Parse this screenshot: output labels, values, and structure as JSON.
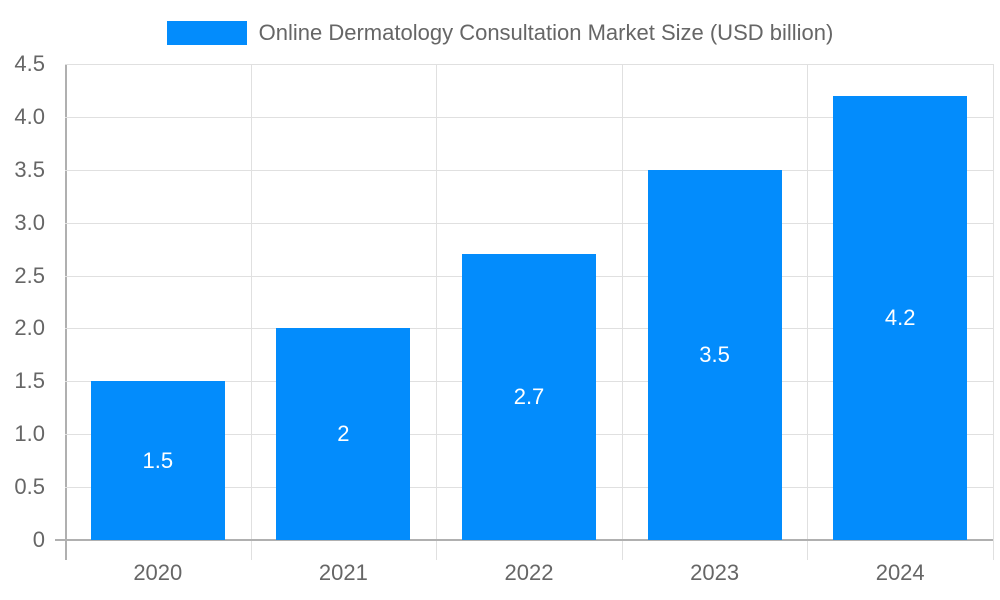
{
  "chart_data": {
    "type": "bar",
    "title": "",
    "categories": [
      "2020",
      "2021",
      "2022",
      "2023",
      "2024"
    ],
    "series": [
      {
        "name": "Online Dermatology Consultation Market Size (USD billion)",
        "values": [
          1.5,
          2,
          2.7,
          3.5,
          4.2
        ],
        "color": "#038cfc"
      }
    ],
    "value_labels": [
      "1.5",
      "2",
      "2.7",
      "3.5",
      "4.2"
    ],
    "xlabel": "",
    "ylabel": "",
    "ylim": [
      0,
      4.5
    ],
    "yticks": [
      "0",
      "0.5",
      "1.0",
      "1.5",
      "2.0",
      "2.5",
      "3.0",
      "3.5",
      "4.0",
      "4.5"
    ],
    "grid": true,
    "legend_position": "top"
  },
  "legend": {
    "label": "Online Dermatology Consultation Market Size (USD billion)",
    "color": "#038cfc"
  }
}
